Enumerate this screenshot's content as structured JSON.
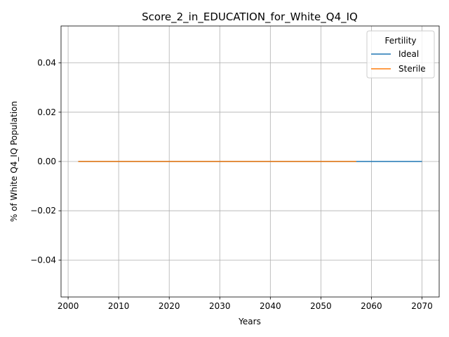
{
  "chart_data": {
    "type": "line",
    "title": "Score_2_in_EDUCATION_for_White_Q4_IQ",
    "xlabel": "Years",
    "ylabel": "% of White Q4_IQ Population",
    "xlim": [
      1998.6,
      2073.4
    ],
    "ylim": [
      -0.055,
      0.055
    ],
    "xticks": [
      2000,
      2010,
      2020,
      2030,
      2040,
      2050,
      2060,
      2070
    ],
    "xtick_labels": [
      "2000",
      "2010",
      "2020",
      "2030",
      "2040",
      "2050",
      "2060",
      "2070"
    ],
    "yticks": [
      -0.04,
      -0.02,
      0.0,
      0.02,
      0.04
    ],
    "ytick_labels": [
      "−0.04",
      "−0.02",
      "0.00",
      "0.02",
      "0.04"
    ],
    "grid": true,
    "legend": {
      "title": "Fertility",
      "position": "top-right"
    },
    "series": [
      {
        "name": "Ideal",
        "color": "#1f77b4",
        "x": [
          2002,
          2070
        ],
        "y": [
          0.0,
          0.0
        ]
      },
      {
        "name": "Sterile",
        "color": "#ff7f0e",
        "x": [
          2002,
          2057
        ],
        "y": [
          0.0,
          0.0
        ]
      }
    ]
  }
}
